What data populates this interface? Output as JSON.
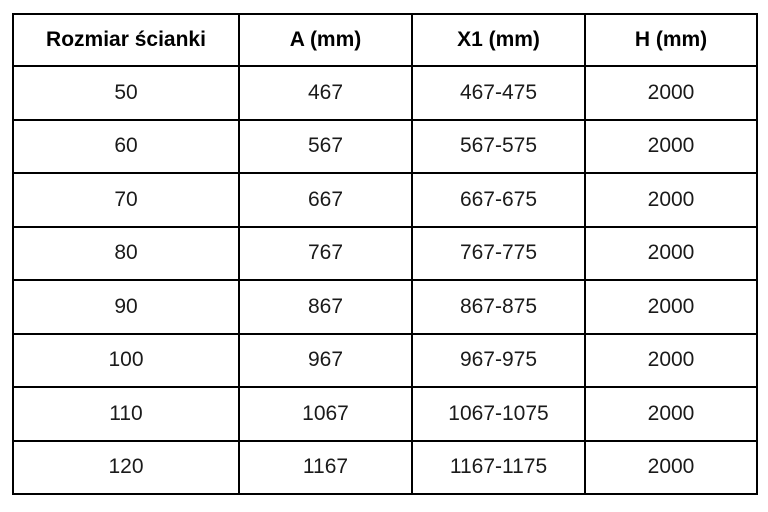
{
  "table": {
    "headers": [
      "Rozmiar ścianki",
      "A (mm)",
      "X1 (mm)",
      "H (mm)"
    ],
    "rows": [
      [
        "50",
        "467",
        "467-475",
        "2000"
      ],
      [
        "60",
        "567",
        "567-575",
        "2000"
      ],
      [
        "70",
        "667",
        "667-675",
        "2000"
      ],
      [
        "80",
        "767",
        "767-775",
        "2000"
      ],
      [
        "90",
        "867",
        "867-875",
        "2000"
      ],
      [
        "100",
        "967",
        "967-975",
        "2000"
      ],
      [
        "110",
        "1067",
        "1067-1075",
        "2000"
      ],
      [
        "120",
        "1167",
        "1167-1175",
        "2000"
      ]
    ],
    "colors": {
      "border": "#000000",
      "text": "#1a1a1a",
      "background": "#ffffff"
    }
  }
}
